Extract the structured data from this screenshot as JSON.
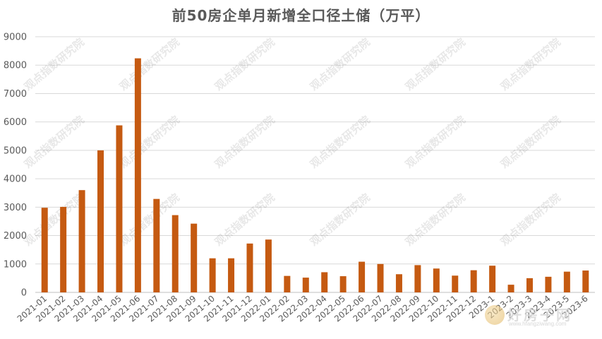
{
  "chart_data": {
    "type": "bar",
    "title": "前50房企单月新增全口径土储（万平）",
    "xlabel": "",
    "ylabel": "",
    "ylim": [
      0,
      9000
    ],
    "yticks": [
      0,
      1000,
      2000,
      3000,
      4000,
      5000,
      6000,
      7000,
      8000,
      9000
    ],
    "grid": true,
    "legend": "none",
    "bar_color": "#c55a11",
    "categories": [
      "2021-01",
      "2021-02",
      "2021-03",
      "2021-04",
      "2021-05",
      "2021-06",
      "2021-07",
      "2021-08",
      "2021-09",
      "2021-10",
      "2021-11",
      "2021-12",
      "2022-01",
      "2022-02",
      "2022-03",
      "2022-04",
      "2022-05",
      "2022-06",
      "2022-07",
      "2022-08",
      "2022-09",
      "2022-10",
      "2022-11",
      "2022-12",
      "2023-1",
      "2023-2",
      "2023-3",
      "2023-4",
      "2023-5",
      "2023-6"
    ],
    "values": [
      2980,
      3010,
      3600,
      5000,
      5880,
      8240,
      3290,
      2720,
      2420,
      1200,
      1200,
      1720,
      1860,
      580,
      520,
      710,
      570,
      1080,
      1000,
      640,
      960,
      840,
      590,
      780,
      940,
      270,
      500,
      550,
      730,
      770
    ]
  },
  "watermark": {
    "text": "观点指数研究院"
  },
  "logo": {
    "text": "好房子网",
    "url": "www.hfangziwang.com"
  }
}
